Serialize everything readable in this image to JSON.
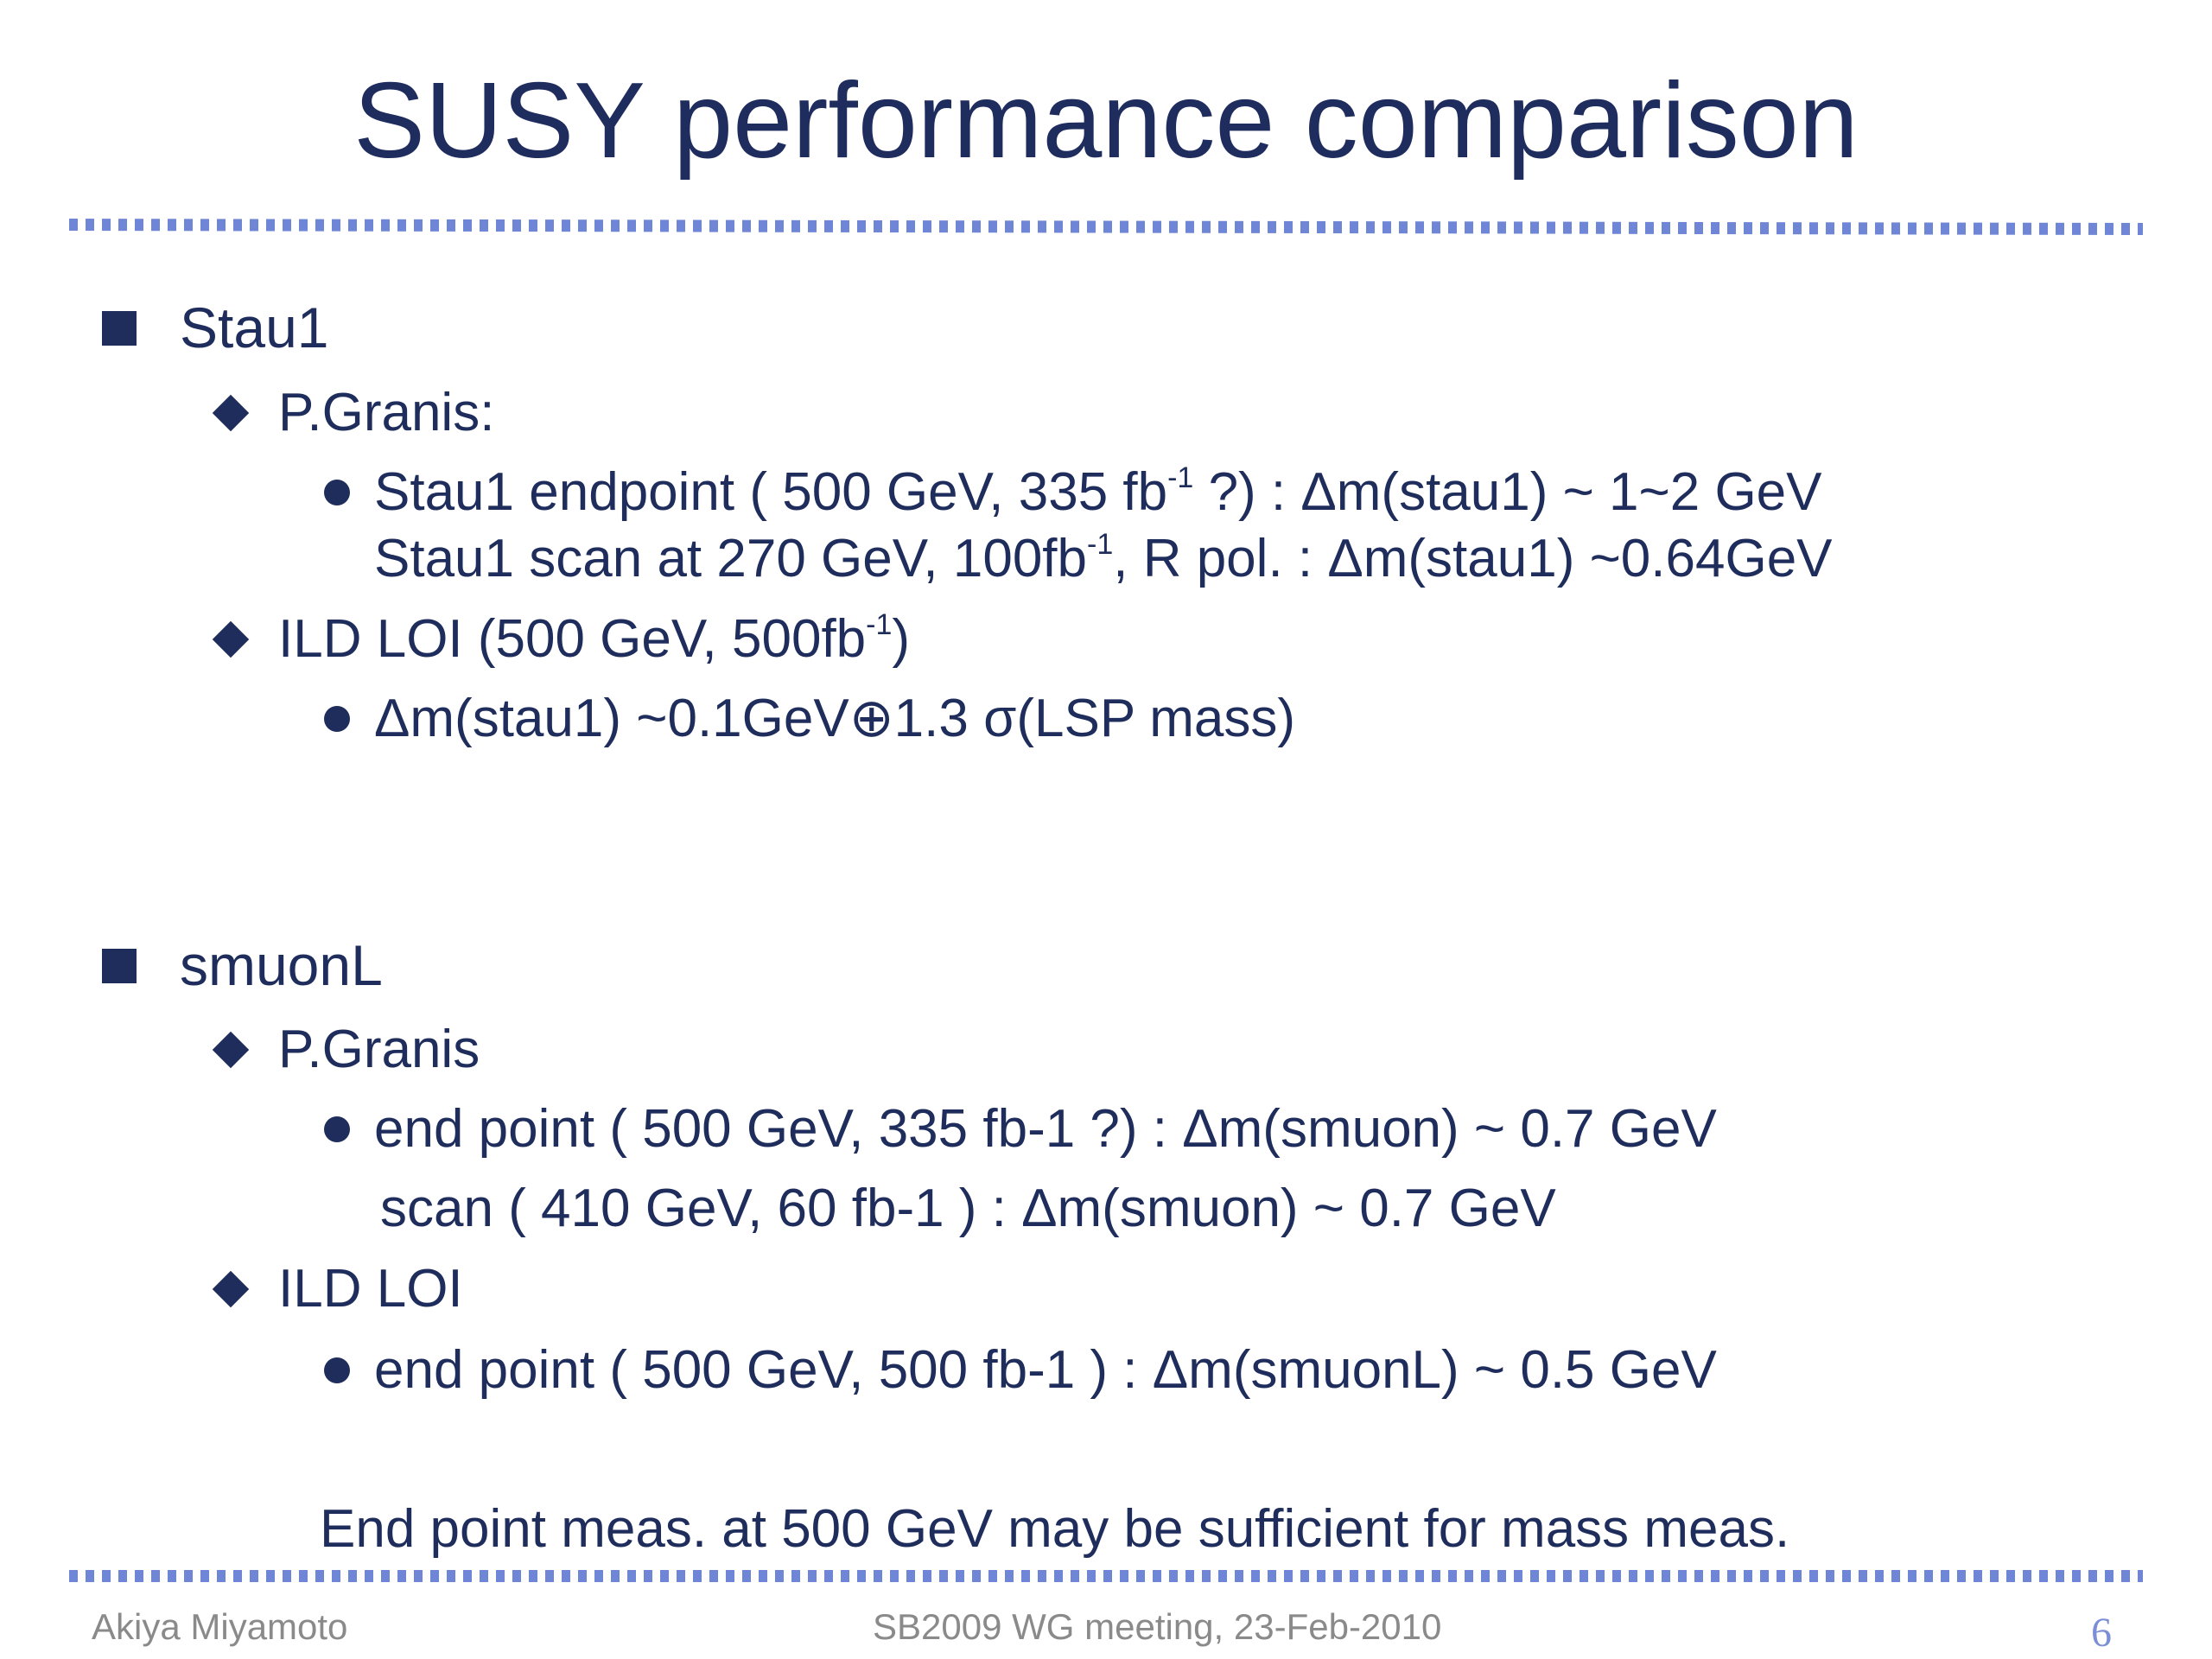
{
  "title": "SUSY performance comparison",
  "sections": {
    "stau": {
      "heading": "Stau1",
      "granis_label": "P.Granis:",
      "granis_line1_a": "Stau1 endpoint ( 500 GeV, 335 fb",
      "granis_line1_sup": "-1",
      "granis_line1_b": " ?) : Δm(stau1) ~ 1~2 GeV",
      "granis_line2_a": "Stau1 scan at 270 GeV, 100fb",
      "granis_line2_sup": "-1",
      "granis_line2_b": ", R pol. :  Δm(stau1) ~0.64GeV",
      "ild_label_a": "ILD LOI (500 GeV, 500fb",
      "ild_label_sup": "-1",
      "ild_label_b": ")",
      "ild_line": "Δm(stau1) ~0.1GeV⊕1.3 σ(LSP mass)"
    },
    "smuon": {
      "heading": "smuonL",
      "granis_label": "P.Granis",
      "granis_line1": "end point ( 500 GeV, 335 fb-1 ?) : Δm(smuon) ~ 0.7 GeV",
      "granis_line2": "scan ( 410 GeV, 60 fb-1 ) : Δm(smuon) ~ 0.7 GeV",
      "ild_label": "ILD LOI",
      "ild_line": "end point ( 500 GeV, 500 fb-1 ) : Δm(smuonL) ~ 0.5 GeV"
    }
  },
  "conclusion": "End point meas. at 500 GeV may be sufficient  for mass meas.",
  "footer": {
    "author": "Akiya Miyamoto",
    "meeting": "SB2009 WG meeting, 23-Feb-2010",
    "page": "6"
  },
  "colors": {
    "text": "#1f2d5c",
    "dotted_rule": "#6f86d6",
    "footer_text": "#8a8a8a",
    "page_number": "#7d8fd4"
  }
}
